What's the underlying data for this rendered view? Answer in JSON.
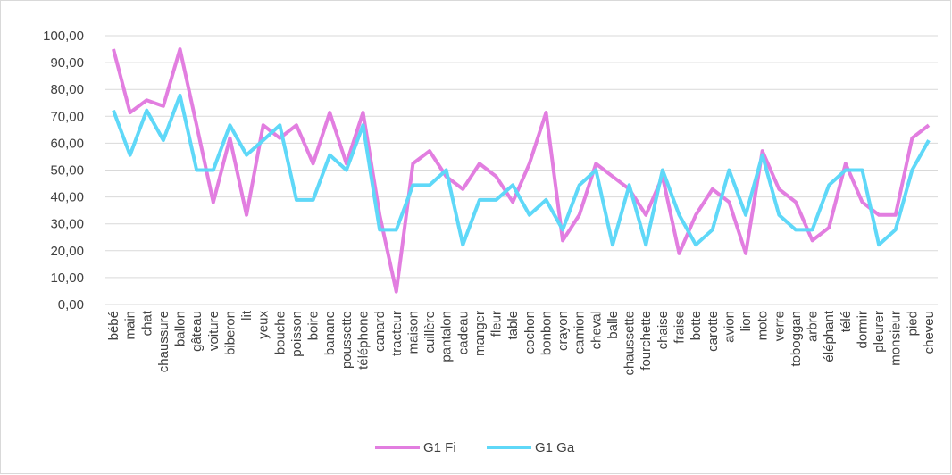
{
  "chart_data": {
    "type": "line",
    "categories": [
      "bébé",
      "main",
      "chat",
      "chaussure",
      "ballon",
      "gâteau",
      "voiture",
      "biberon",
      "lit",
      "yeux",
      "bouche",
      "poisson",
      "boire",
      "banane",
      "poussette",
      "téléphone",
      "canard",
      "tracteur",
      "maison",
      "cuillère",
      "pantalon",
      "cadeau",
      "manger",
      "fleur",
      "table",
      "cochon",
      "bonbon",
      "crayon",
      "camion",
      "cheval",
      "balle",
      "chaussette",
      "fourchette",
      "chaise",
      "fraise",
      "botte",
      "carotte",
      "avion",
      "lion",
      "moto",
      "verre",
      "toboggan",
      "arbre",
      "éléphant",
      "télé",
      "dormir",
      "pleurer",
      "monsieur",
      "pied",
      "cheveu"
    ],
    "series": [
      {
        "name": "G1 Fi",
        "color": "#e27ee0",
        "values": [
          95,
          71.4,
          76,
          73.8,
          95,
          66.7,
          38,
          61.9,
          33.3,
          66.7,
          61.9,
          66.7,
          52.4,
          71.4,
          52.4,
          71.4,
          33.3,
          4.8,
          52.4,
          57.1,
          47.6,
          42.9,
          52.4,
          47.6,
          38.1,
          52.4,
          71.4,
          23.8,
          33.3,
          52.4,
          47.6,
          42.9,
          33.3,
          47.6,
          19,
          33.3,
          42.9,
          38.1,
          19,
          57.1,
          42.9,
          38.1,
          23.8,
          28.6,
          52.4,
          38.1,
          33.3,
          33.3,
          61.9,
          66.7
        ]
      },
      {
        "name": "G1 Ga",
        "color": "#5fd8f8",
        "values": [
          72.2,
          55.6,
          72.2,
          61.1,
          77.8,
          50,
          50,
          66.7,
          55.6,
          61.1,
          66.7,
          38.9,
          38.9,
          55.6,
          50,
          66.7,
          27.8,
          27.8,
          44.4,
          44.4,
          50,
          22.2,
          38.9,
          38.9,
          44.4,
          33.3,
          38.9,
          27.8,
          44.4,
          50,
          22.2,
          44.4,
          22.2,
          50,
          33.3,
          22.2,
          27.8,
          50,
          33.3,
          55.6,
          33.3,
          27.8,
          27.8,
          44.4,
          50,
          50,
          22.2,
          27.8,
          50,
          61.1
        ]
      }
    ],
    "ylim": [
      0,
      100
    ],
    "yticks": [
      {
        "value": 0,
        "label": "0,00"
      },
      {
        "value": 10,
        "label": "10,00"
      },
      {
        "value": 20,
        "label": "20,00"
      },
      {
        "value": 30,
        "label": "30,00"
      },
      {
        "value": 40,
        "label": "40,00"
      },
      {
        "value": 50,
        "label": "50,00"
      },
      {
        "value": 60,
        "label": "60,00"
      },
      {
        "value": 70,
        "label": "70,00"
      },
      {
        "value": 80,
        "label": "80,00"
      },
      {
        "value": 90,
        "label": "90,00"
      },
      {
        "value": 100,
        "label": "100,00"
      }
    ],
    "grid": true,
    "legend": "bottom"
  }
}
